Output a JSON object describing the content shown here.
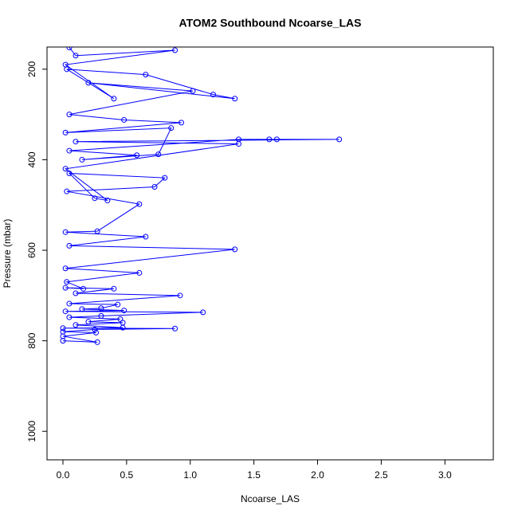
{
  "chart_data": {
    "type": "line",
    "title": "ATOM2 Southbound Ncoarse_LAS",
    "x_label": "Ncoarse_LAS",
    "y_label": "Pressure (mbar)",
    "color": "#0000ff",
    "x": [
      0,
      0.27,
      0,
      0.26,
      0,
      0.25,
      0.88,
      0,
      0.47,
      0.1,
      0.47,
      0.2,
      0.45,
      0.05,
      0.3,
      1.1,
      0.02,
      0.48,
      0.15,
      0.3,
      0.43,
      0.05,
      0.92,
      0.1,
      0.4,
      0.02,
      0.16,
      0.03,
      0.6,
      0.02,
      1.35,
      0.05,
      0.65,
      0.02,
      0.27,
      0.6,
      0.03,
      0.72,
      0.8,
      0.05,
      0.25,
      0.35,
      0.02,
      1.38,
      0.1,
      2.17,
      1.68,
      1.62,
      1.38,
      0.05,
      0.58,
      0.15,
      0.75,
      0.85,
      0.02,
      0.93,
      0.48,
      0.05,
      1.02,
      0.2,
      1.35,
      1.18,
      0.65,
      0.03,
      0.4,
      0.02,
      0.88,
      0.1,
      0.05
    ],
    "values": [
      800,
      803,
      790,
      782,
      780,
      775,
      773,
      772,
      771,
      765,
      760,
      758,
      752,
      748,
      745,
      737,
      735,
      733,
      730,
      728,
      720,
      718,
      700,
      695,
      685,
      683,
      685,
      670,
      650,
      640,
      598,
      590,
      570,
      560,
      558,
      498,
      470,
      460,
      440,
      430,
      485,
      490,
      420,
      365,
      360,
      355,
      355,
      355,
      355,
      380,
      390,
      400,
      388,
      330,
      340,
      318,
      312,
      300,
      248,
      230,
      265,
      256,
      212,
      200,
      265,
      190,
      158,
      170,
      152
    ],
    "xlim": [
      -0.125,
      3.38
    ],
    "xticks": [
      {
        "value": 0,
        "label": "0.0"
      },
      0.5,
      {
        "value": 1,
        "label": "1.0"
      },
      1.5,
      {
        "value": 2,
        "label": "2.0"
      },
      2.5,
      {
        "value": 3,
        "label": "3.0"
      }
    ],
    "ylim": [
      1063,
      151
    ],
    "yticks": [
      200,
      400,
      600,
      800,
      1000
    ]
  }
}
